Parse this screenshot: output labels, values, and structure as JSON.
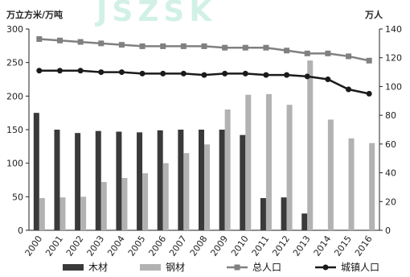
{
  "chart_data": {
    "type": "bar",
    "title": "",
    "watermark": "JSZSK",
    "y_left": {
      "label": "万立方米/万吨",
      "lim": [
        0,
        300
      ],
      "ticks": [
        "0",
        "50",
        "100",
        "150",
        "200",
        "250",
        "300"
      ]
    },
    "y_right": {
      "label": "万人",
      "lim": [
        0,
        140
      ],
      "ticks": [
        "0",
        "20",
        "40",
        "60",
        "80",
        "100",
        "120",
        "140"
      ]
    },
    "categories": [
      "2000",
      "2001",
      "2002",
      "2003",
      "2004",
      "2005",
      "2006",
      "2007",
      "2008",
      "2009",
      "2010",
      "2011",
      "2012",
      "2013",
      "2014",
      "2015",
      "2016"
    ],
    "series": [
      {
        "name": "木材",
        "kind": "bar",
        "axis": "left",
        "color": "#3a3a3a",
        "values": [
          175,
          150,
          145,
          148,
          147,
          146,
          149,
          150,
          150,
          150,
          142,
          48,
          49,
          25,
          null,
          null,
          null
        ]
      },
      {
        "name": "钢材",
        "kind": "bar",
        "axis": "left",
        "color": "#b2b2b2",
        "values": [
          48,
          49,
          50,
          72,
          78,
          85,
          100,
          115,
          128,
          180,
          202,
          203,
          187,
          253,
          165,
          137,
          130
        ]
      },
      {
        "name": "总人口",
        "kind": "line",
        "axis": "right",
        "color": "#808080",
        "marker": "square",
        "values": [
          133,
          132,
          131,
          130,
          129,
          128,
          128,
          128,
          128,
          127,
          127,
          127,
          125,
          123,
          123,
          121,
          118
        ]
      },
      {
        "name": "城镇人口",
        "kind": "line",
        "axis": "right",
        "color": "#1a1a1a",
        "marker": "circle",
        "values": [
          111,
          111,
          111,
          110,
          110,
          109,
          109,
          109,
          108,
          109,
          109,
          108,
          108,
          107,
          105,
          98,
          95
        ]
      }
    ],
    "grid": false,
    "legend": "bottom"
  }
}
